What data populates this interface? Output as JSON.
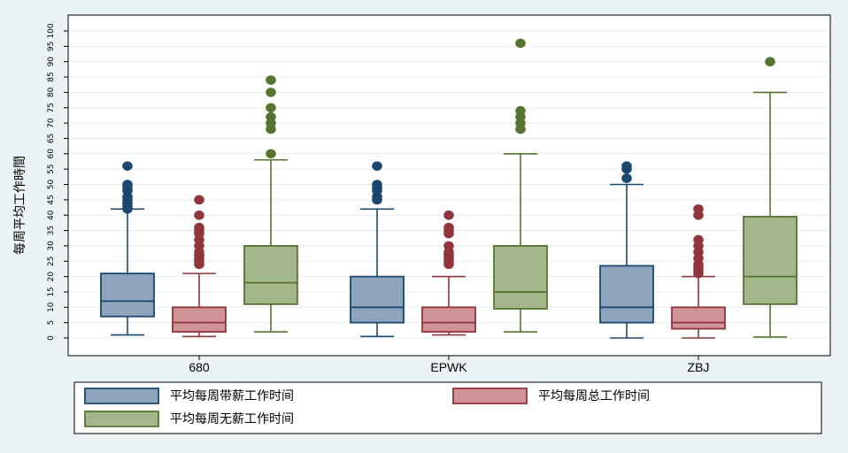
{
  "chart_data": {
    "type": "boxplot",
    "ylabel": "每周平均工作時間",
    "ylim": [
      -5,
      105
    ],
    "yticks": [
      0,
      5,
      10,
      15,
      20,
      25,
      30,
      35,
      40,
      45,
      50,
      55,
      60,
      65,
      70,
      75,
      80,
      85,
      90,
      95,
      100
    ],
    "grid": true,
    "legend_position": "bottom",
    "categories": [
      "680",
      "EPWK",
      "ZBJ"
    ],
    "series": [
      {
        "name": "平均每周带薪工作时间",
        "fill": "#8ea4bd",
        "stroke": "#1a476f",
        "outlier_color": "#1a476f",
        "boxes": [
          {
            "min": 1,
            "q1": 7,
            "median": 12,
            "q3": 21,
            "max": 42,
            "outliers": [
              42,
              43,
              44,
              45,
              46,
              48,
              49,
              50,
              56
            ]
          },
          {
            "min": 0.5,
            "q1": 5,
            "median": 10,
            "q3": 20,
            "max": 42,
            "outliers": [
              45,
              46,
              48,
              49,
              50,
              56
            ]
          },
          {
            "min": 0,
            "q1": 5,
            "median": 10,
            "q3": 23.5,
            "max": 50,
            "outliers": [
              52,
              55,
              56
            ]
          }
        ]
      },
      {
        "name": "平均每周总工作时间",
        "fill": "#cf9296",
        "stroke": "#90353b",
        "outlier_color": "#90353b",
        "boxes": [
          {
            "min": 0.5,
            "q1": 2,
            "median": 5,
            "q3": 10,
            "max": 21,
            "outliers": [
              24,
              25,
              26,
              27,
              28,
              30,
              32,
              34,
              35,
              36,
              40,
              45
            ]
          },
          {
            "min": 1,
            "q1": 2,
            "median": 5,
            "q3": 10,
            "max": 20,
            "outliers": [
              24,
              25,
              26,
              27,
              28,
              30,
              34,
              35,
              36,
              40
            ]
          },
          {
            "min": 0,
            "q1": 3,
            "median": 5,
            "q3": 10,
            "max": 20,
            "outliers": [
              21,
              22,
              23,
              24,
              26,
              28,
              30,
              32,
              40,
              42
            ]
          }
        ]
      },
      {
        "name": "平均每周无薪工作时间",
        "fill": "#a3b78a",
        "stroke": "#55752f",
        "outlier_color": "#55752f",
        "boxes": [
          {
            "min": 2,
            "q1": 11,
            "median": 18,
            "q3": 30,
            "max": 58,
            "outliers": [
              60,
              68,
              70,
              72,
              75,
              80,
              84
            ]
          },
          {
            "min": 2,
            "q1": 9.5,
            "median": 15,
            "q3": 30,
            "max": 60,
            "outliers": [
              68,
              70,
              72,
              74,
              96
            ]
          },
          {
            "min": 0.3,
            "q1": 11,
            "median": 20,
            "q3": 39.5,
            "max": 80,
            "outliers": [
              90
            ]
          }
        ]
      }
    ]
  }
}
